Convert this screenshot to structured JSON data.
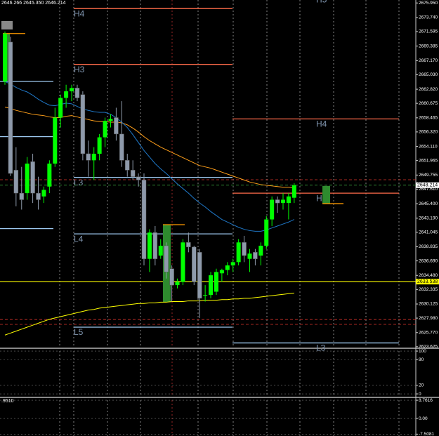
{
  "header": {
    "ohlc_text": "2646.266 2645.350 2646.214"
  },
  "chart_data": [
    {
      "type": "candlestick",
      "up_color": "#00ff00",
      "down_color": "#8e9aab",
      "open": [
        2664.0,
        2670.0,
        2650.5,
        2647.0,
        2647.0,
        2651.8,
        2647.0,
        2646.5,
        2648.0,
        2651.5,
        2658.5,
        2661.5,
        2662.5,
        2663.0,
        2662.0,
        2653.0,
        2652.0,
        2653.0,
        2655.5,
        2658.0,
        2658.5,
        2656.0,
        2652.0,
        2650.5,
        2649.5,
        2649.0,
        2637.0,
        2641.0,
        2637.5,
        2639.0,
        2635.5,
        2633.0,
        2633.5,
        2639.5,
        2638.8,
        2638.0,
        2631.5,
        2631.5,
        2632.0,
        2634.8,
        2635.3,
        2636.0,
        2636.5,
        2639.5,
        2637.0,
        2638.0,
        2637.5,
        2639.0,
        2643.0,
        2646.0,
        2645.5,
        2645.5,
        2646.3
      ],
      "high": [
        2671.6,
        2670.8,
        2654,
        2651,
        2652.5,
        2653,
        2649.5,
        2648,
        2652,
        2660,
        2662,
        2663.5,
        2663.5,
        2663.5,
        2662.5,
        2655,
        2654,
        2656,
        2658.5,
        2659,
        2660,
        2661,
        2653,
        2652,
        2650,
        2650,
        2641.5,
        2642,
        2640,
        2639.5,
        2636,
        2634,
        2640,
        2641,
        2639,
        2638.5,
        2633,
        2635,
        2635.5,
        2635.5,
        2636.5,
        2637,
        2640,
        2640.5,
        2638.5,
        2638.5,
        2639.5,
        2643.5,
        2646.5,
        2646.5,
        2647,
        2647,
        2648.5
      ],
      "low": [
        2663.5,
        2649.6,
        2645,
        2644.5,
        2646,
        2645.5,
        2644.5,
        2645.5,
        2647,
        2651,
        2657,
        2660,
        2661,
        2661,
        2652,
        2649.5,
        2649,
        2652,
        2654,
        2657,
        2655,
        2651,
        2649.5,
        2649,
        2648,
        2636,
        2635,
        2636,
        2637,
        2634,
        2630.5,
        2632.5,
        2633,
        2638,
        2633,
        2628,
        2630.5,
        2631,
        2631.5,
        2633.5,
        2634.5,
        2635,
        2636,
        2636.5,
        2635,
        2636,
        2636,
        2638.5,
        2642,
        2644,
        2644.5,
        2643,
        2645.5
      ],
      "close": [
        2671.3,
        2650,
        2647,
        2646,
        2651.5,
        2647,
        2646,
        2647.5,
        2651.5,
        2658.5,
        2661.5,
        2662.5,
        2663,
        2661.5,
        2653,
        2652,
        2653,
        2655.5,
        2658,
        2658.3,
        2656,
        2652,
        2650.5,
        2649.5,
        2649,
        2637,
        2641,
        2637,
        2639,
        2635,
        2633,
        2633.5,
        2639.5,
        2638.8,
        2633.5,
        2631,
        2631.5,
        2634.5,
        2635,
        2635.3,
        2636,
        2636.5,
        2639.5,
        2637.5,
        2637.8,
        2637,
        2639,
        2643,
        2646,
        2645.5,
        2646,
        2646.5,
        2648.2
      ],
      "lines": [
        {
          "color": "#ff9f1a",
          "values": [
            2660.1,
            2659.9,
            2659.6,
            2659.4,
            2659.2,
            2659.0,
            2658.9,
            2658.8,
            2658.6,
            2658.5,
            2658.5,
            2658.7,
            2658.8,
            2658.6,
            2658.4,
            2658.2,
            2658.0,
            2657.9,
            2657.9,
            2657.8,
            2657.8,
            2657.7,
            2657.4,
            2656.9,
            2656.3,
            2655.6,
            2655.0,
            2654.5,
            2654.0,
            2653.6,
            2653.2,
            2652.8,
            2652.4,
            2652.0,
            2651.6,
            2651.2,
            2651.0,
            2650.8,
            2650.5,
            2650.2,
            2649.9,
            2649.6,
            2649.3,
            2649.0,
            2648.7,
            2648.5,
            2648.3,
            2648.2,
            2648.1,
            2648.0,
            2647.9,
            2647.9,
            2647.8
          ]
        },
        {
          "color": "#1f78c8",
          "values": [
            2664.0,
            2663.6,
            2663.1,
            2662.7,
            2662.4,
            2661.9,
            2661.3,
            2660.8,
            2660.4,
            2660.3,
            2660.5,
            2660.7,
            2660.6,
            2660.2,
            2659.8,
            2659.6,
            2659.4,
            2659.3,
            2659.3,
            2659.0,
            2658.5,
            2657.8,
            2657.0,
            2655.9,
            2654.7,
            2653.5,
            2652.5,
            2651.5,
            2650.7,
            2650.0,
            2649.2,
            2648.4,
            2647.7,
            2647.0,
            2646.2,
            2645.5,
            2644.9,
            2644.2,
            2643.6,
            2643.0,
            2642.6,
            2642.2,
            2641.8,
            2641.5,
            2641.3,
            2641.2,
            2641.2,
            2641.4,
            2641.7,
            2642.0,
            2642.3,
            2642.6,
            2643.0
          ]
        },
        {
          "color": "#ffff00",
          "values": [
            2625.4,
            2625.7,
            2626.0,
            2626.3,
            2626.6,
            2626.9,
            2627.2,
            2627.5,
            2627.8,
            2628.0,
            2628.2,
            2628.4,
            2628.6,
            2628.8,
            2629.0,
            2629.2,
            2629.3,
            2629.5,
            2629.6,
            2629.7,
            2629.8,
            2629.9,
            2630.0,
            2630.1,
            2630.2,
            2630.2,
            2630.3,
            2630.3,
            2630.4,
            2630.4,
            2630.5,
            2630.5,
            2630.5,
            2630.6,
            2630.6,
            2630.6,
            2630.7,
            2630.7,
            2630.7,
            2630.8,
            2630.8,
            2630.9,
            2630.9,
            2631.0,
            2631.0,
            2631.1,
            2631.2,
            2631.3,
            2631.4,
            2631.5,
            2631.6,
            2631.7,
            2631.8
          ]
        }
      ],
      "level_groups": [
        {
          "levels": [
            {
              "value": 2664.0,
              "color": "#9ec9f0"
            },
            {
              "value": 2655.6,
              "color": "#9ec9f0"
            },
            {
              "value": 2641.6,
              "color": "#9ec9f0"
            }
          ]
        },
        {
          "levels": [
            {
              "label": "H4",
              "value": 2675.1,
              "color": "#ff6b4a"
            },
            {
              "label": "H3",
              "value": 2666.6,
              "color": "#ff6b4a"
            },
            {
              "label": "L3",
              "value": 2649.4,
              "color": "#9ec9f0"
            },
            {
              "label": "L4",
              "value": 2640.8,
              "color": "#9ec9f0"
            },
            {
              "label": "L5",
              "value": 2626.6,
              "color": "#9ec9f0"
            }
          ]
        },
        {
          "levels": [
            {
              "label": "H5",
              "value": 2677.2,
              "color": "#ff6b4a"
            },
            {
              "label": "H4",
              "value": 2658.3,
              "color": "#ff6b4a"
            },
            {
              "label": "H3",
              "value": 2647.0,
              "color": "#ff6b4a"
            },
            {
              "label": "L3",
              "value": 2624.2,
              "color": "#9ec9f0"
            }
          ]
        }
      ],
      "dashed_levels": [
        2649.04,
        2627.77,
        2627.03
      ],
      "dashed_color": "#d9342b",
      "last_price": 2648.214,
      "last_price_color": "#3cb043",
      "alert_level": 2633.538,
      "alert_color": "#ffff00",
      "range_boxes": [
        {
          "high": 2671.3,
          "low": 2664.1
        },
        {
          "high": 2642.2,
          "low": 2630.4
        },
        {
          "high": 2648.1,
          "low": 2645.4
        }
      ],
      "box_color": "#2e8b2e",
      "box_edge_color": "#ff9900",
      "ylim": [
        2623.5,
        2676.4
      ],
      "yticks": [
        {
          "value": 2675.95,
          "label": "2675.950"
        },
        {
          "value": 2673.74,
          "label": "2673.740"
        },
        2671.595,
        2669.385,
        {
          "value": 2667.17,
          "label": "2667.170"
        },
        {
          "value": 2665.03,
          "label": "2665.030"
        },
        {
          "value": 2662.82,
          "label": "2662.820"
        },
        2660.675,
        2658.465,
        {
          "value": 2656.32,
          "label": "2656.320"
        },
        {
          "value": 2654.11,
          "label": "2654.110"
        },
        2651.965,
        2649.755,
        {
          "value": 2647.61,
          "label": "2647.610"
        },
        {
          "value": 2645.4,
          "label": "2645.400"
        },
        {
          "value": 2643.19,
          "label": "2643.190"
        },
        2641.045,
        2638.835,
        {
          "value": 2636.69,
          "label": "2636.690"
        },
        {
          "value": 2634.48,
          "label": "2634.480"
        },
        2632.335,
        2630.125,
        {
          "value": 2627.98,
          "label": "2627.980"
        },
        {
          "value": 2625.77,
          "label": "2625.770"
        },
        2623.625
      ]
    },
    {
      "type": "oscillator",
      "ylim": [
        -6.5,
        105
      ],
      "yticks": [
        100,
        80,
        20,
        0
      ]
    },
    {
      "type": "oscillator",
      "indicator_label": ".9510",
      "ylim": [
        -8.4,
        9.8
      ],
      "yticks": [
        8.7616,
        {
          "value": 0,
          "label": "0.00"
        },
        -7.5081
      ]
    }
  ]
}
